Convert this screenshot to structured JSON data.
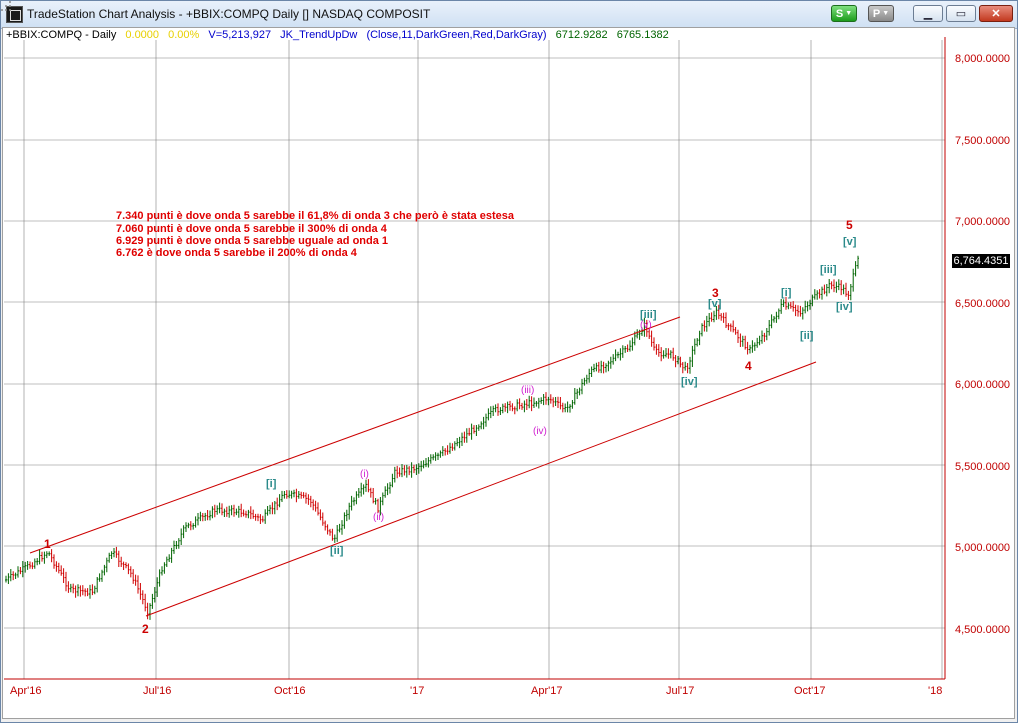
{
  "window": {
    "title": "TradeStation Chart Analysis - +BBIX:COMPQ Daily [] NASDAQ COMPOSIT",
    "buttons": {
      "s_label": "S",
      "p_label": "P"
    }
  },
  "info_line": {
    "symbol": "+BBIX:COMPQ - Daily",
    "value1": "0.0000",
    "value2": "0.00%",
    "volume": "V=5,213,927",
    "indicator": "JK_TrendUpDw",
    "params": "(Close,11,DarkGreen,Red,DarkGray)",
    "v3": "6712.9282",
    "v4": "6765.1382"
  },
  "price_axis": {
    "labels": [
      "8,000.0000",
      "7,500.0000",
      "7,000.0000",
      "6,500.0000",
      "6,000.0000",
      "5,500.0000",
      "5,000.0000",
      "4,500.0000"
    ],
    "current_price": "6,764.4351"
  },
  "time_axis": {
    "labels": [
      "Apr'16",
      "Jul'16",
      "Oct'16",
      "'17",
      "Apr'17",
      "Jul'17",
      "Oct'17",
      "'18"
    ]
  },
  "notes": [
    "7.340 punti è dove onda 5 sarebbe il 61,8% di onda 3 che però è stata estesa",
    "7.060 punti è dove onda 5 sarebbe il 300% di onda 4",
    "6.929 punti è dove onda 5 sarebbe uguale ad onda 1",
    "6.762 è dove onda 5 sarebbe il 200% di onda 4"
  ],
  "wave_labels": {
    "w1": "1",
    "w2": "2",
    "w3": "3",
    "w4": "4",
    "w5": "5",
    "b_i_a": "[i]",
    "b_ii_a": "[ii]",
    "b_iii_a": "[iii]",
    "b_iv_a": "[iv]",
    "b_v_a": "[v]",
    "p_i": "(i)",
    "p_ii": "(ii)",
    "p_iii": "(iii)",
    "p_iv": "(iv)",
    "p_v": "(v)",
    "b_i_b": "[i]",
    "b_ii_b": "[ii]",
    "b_iii_b": "[iii]",
    "b_iv_b": "[iv]",
    "b_v_b": "[v]"
  },
  "colors": {
    "up": "#006400",
    "down": "#d00000",
    "channel": "#cc0000",
    "grid": "#808080",
    "axis_text": "#c00000",
    "teal": "#2a8a8a",
    "magenta": "#d020d0"
  }
}
